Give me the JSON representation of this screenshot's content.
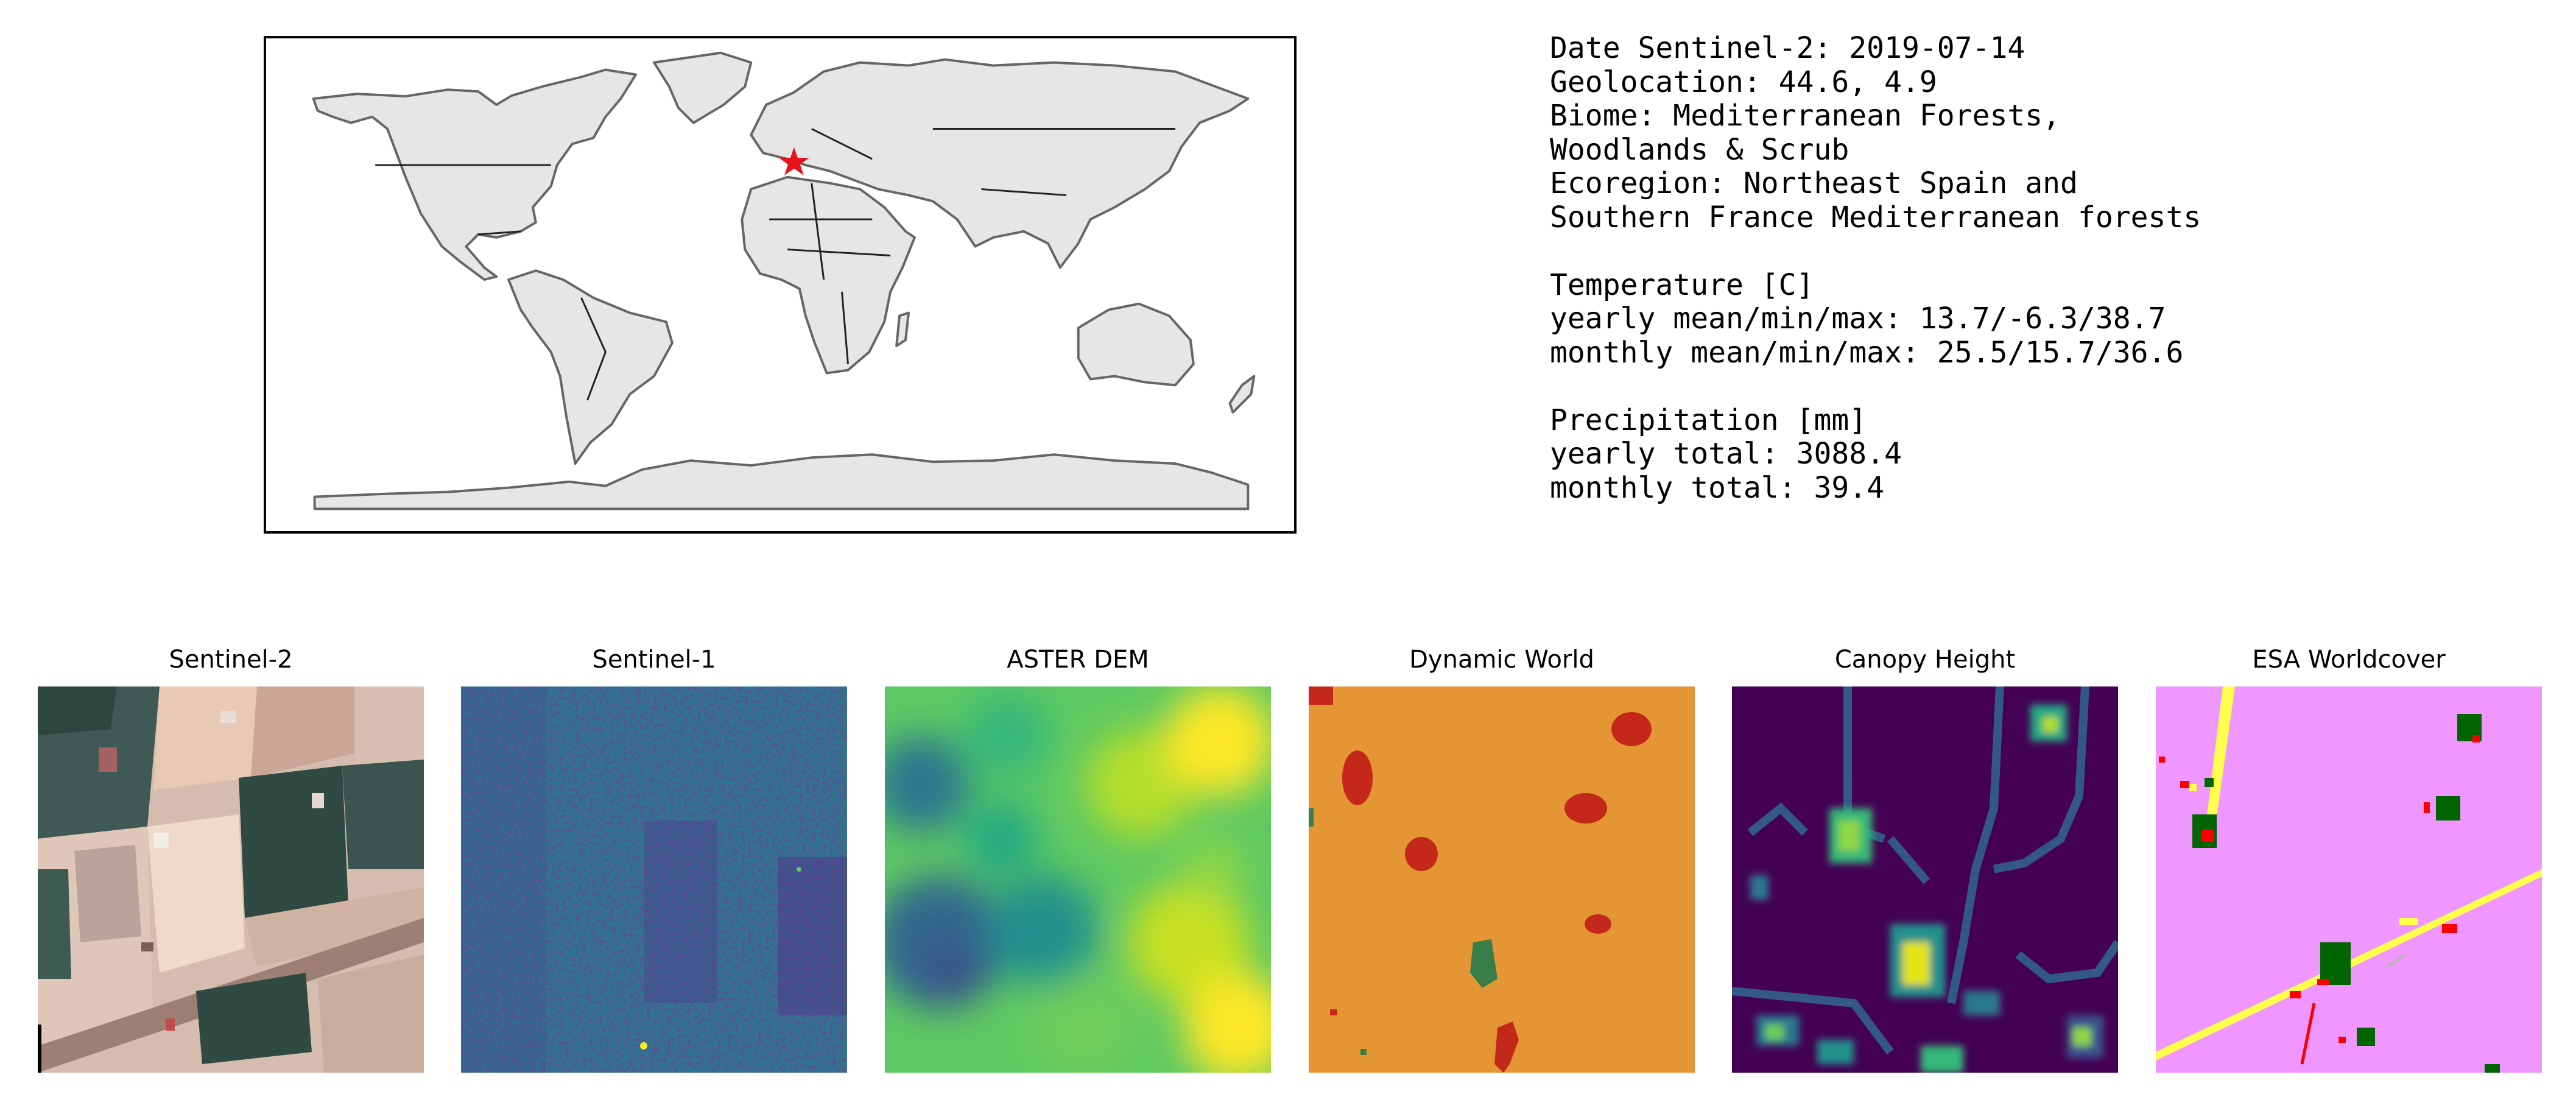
{
  "location_marker": {
    "lat": 44.6,
    "lon": 4.9,
    "color": "#e8141c",
    "icon": "star-icon"
  },
  "info": {
    "date": "Date Sentinel-2: 2019-07-14",
    "geolocation": "Geolocation: 44.6, 4.9",
    "biome_line1": "Biome: Mediterranean Forests,",
    "biome_line2": "Woodlands & Scrub",
    "ecoregion_line1": "Ecoregion: Northeast Spain and",
    "ecoregion_line2": "Southern France Mediterranean forests",
    "temp_header": "Temperature [C]",
    "temp_yearly": "yearly mean/min/max: 13.7/-6.3/38.7",
    "temp_monthly": "monthly mean/min/max: 25.5/15.7/36.6",
    "precip_header": "Precipitation [mm]",
    "precip_yearly": "yearly total: 3088.4",
    "precip_monthly": "monthly total: 39.4"
  },
  "panels": [
    {
      "title": "Sentinel-2"
    },
    {
      "title": "Sentinel-1"
    },
    {
      "title": "ASTER DEM"
    },
    {
      "title": "Dynamic World"
    },
    {
      "title": "Canopy Height"
    },
    {
      "title": "ESA Worldcover"
    }
  ],
  "colors": {
    "land": "#e6e6e6",
    "coast": "#666666",
    "viridis_dark": "#440154",
    "viridis_mid": "#21918c",
    "viridis_light": "#fde725",
    "dynamic_world_crops": "#e49635",
    "dynamic_world_built": "#c4281b",
    "dynamic_world_trees": "#397d49",
    "worldcover_cropland": "#f096ff",
    "worldcover_tree": "#006400",
    "worldcover_built": "#fa0000",
    "worldcover_grass": "#ffff4c"
  }
}
